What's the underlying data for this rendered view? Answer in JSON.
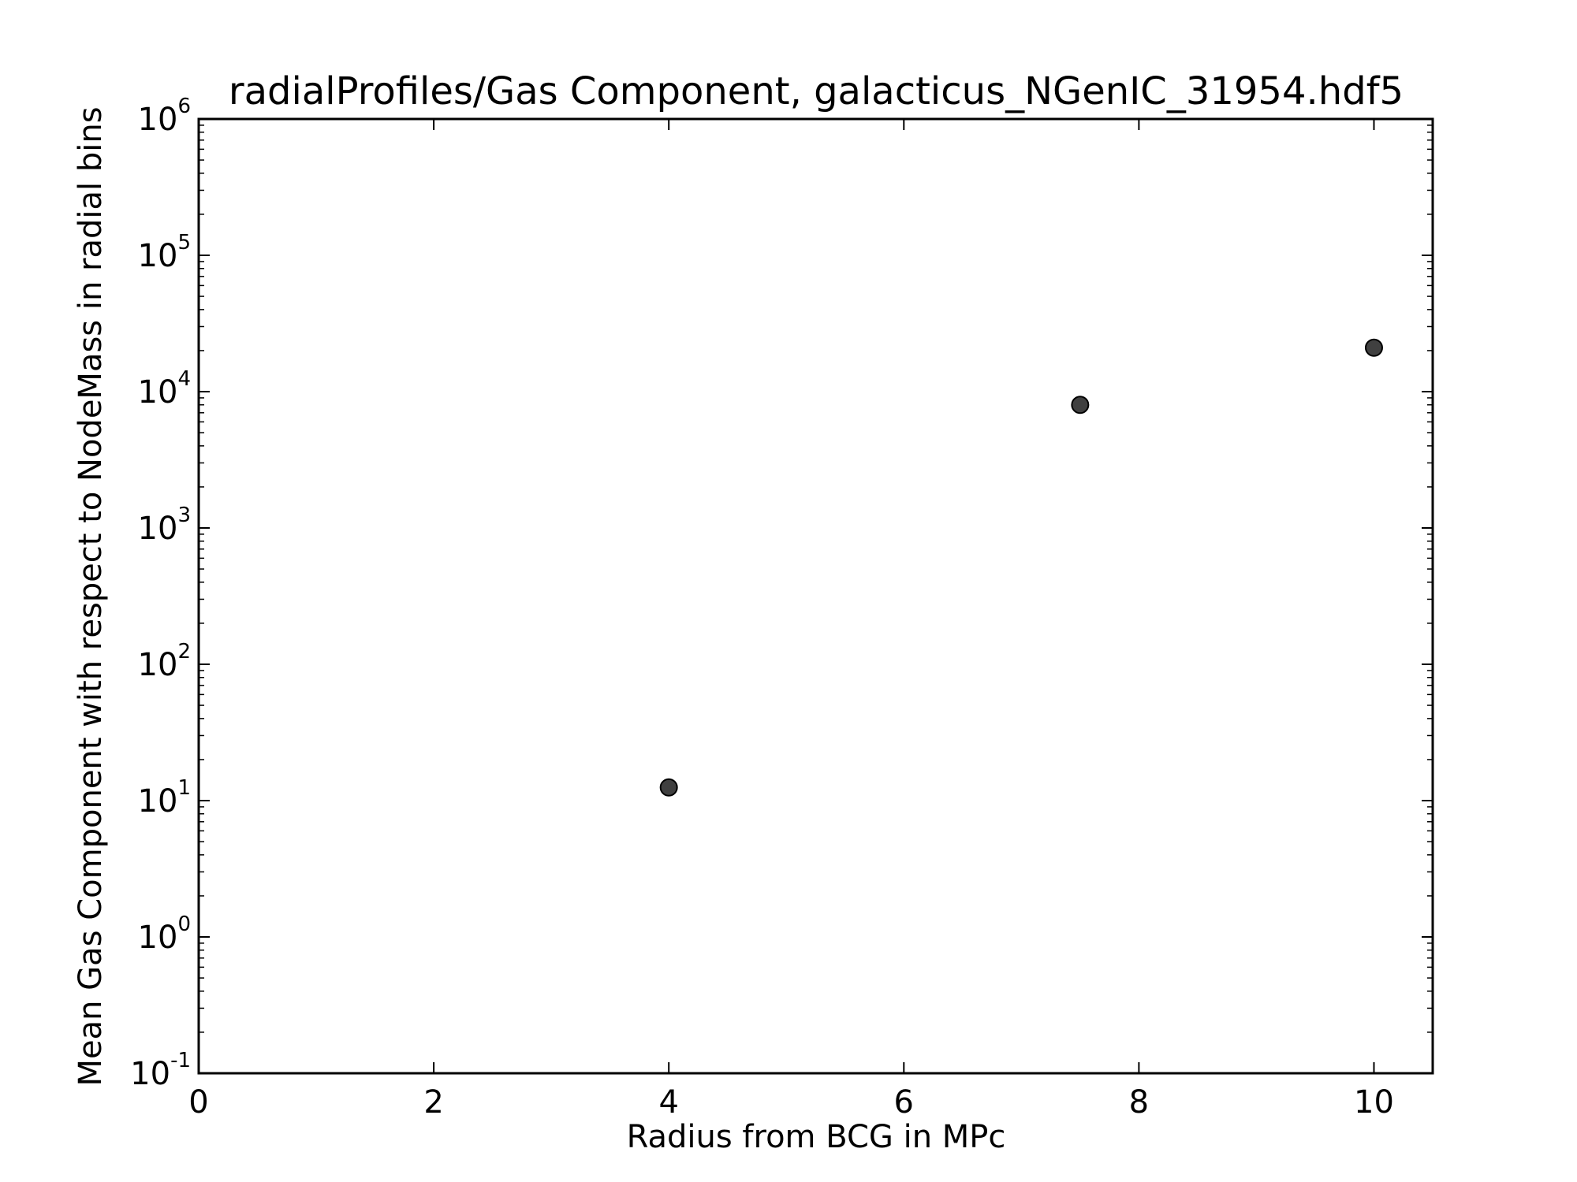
{
  "chart_data": {
    "type": "scatter",
    "title": "radialProfiles/Gas Component, galacticus_NGenIC_31954.hdf5",
    "xlabel": "Radius from BCG in MPc",
    "ylabel": "Mean Gas Component with respect to NodeMass in radial bins",
    "xlim": [
      0,
      10.5
    ],
    "ylim": [
      0.1,
      1000000
    ],
    "yscale": "log",
    "grid": false,
    "x_ticks": [
      0,
      2,
      4,
      6,
      8,
      10
    ],
    "y_ticks": [
      {
        "base": "10",
        "exp": "-1",
        "value": 0.1
      },
      {
        "base": "10",
        "exp": "0",
        "value": 1
      },
      {
        "base": "10",
        "exp": "1",
        "value": 10
      },
      {
        "base": "10",
        "exp": "2",
        "value": 100
      },
      {
        "base": "10",
        "exp": "3",
        "value": 1000
      },
      {
        "base": "10",
        "exp": "4",
        "value": 10000
      },
      {
        "base": "10",
        "exp": "5",
        "value": 100000
      },
      {
        "base": "10",
        "exp": "6",
        "value": 1000000
      }
    ],
    "series": [
      {
        "x": [
          4,
          7.5,
          10
        ],
        "y": [
          12.5,
          8000,
          21000
        ],
        "color": "#404040"
      }
    ]
  }
}
